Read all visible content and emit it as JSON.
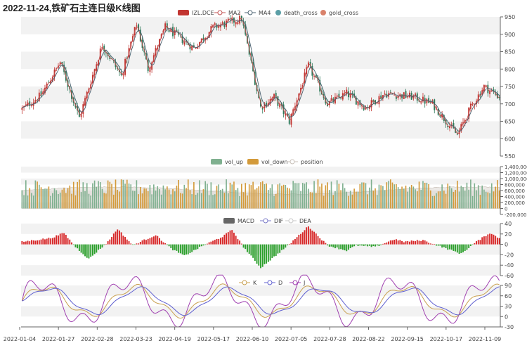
{
  "title": "2022-11-24,铁矿石主连日级K线图",
  "colors": {
    "up": "#c23531",
    "down": "#2f7a5b",
    "ma2": "#c05050",
    "ma4": "#4a6170",
    "death_cross": "#5b9ea6",
    "gold_cross": "#d9826b",
    "vol_up": "#7fb08f",
    "vol_down": "#d39a3a",
    "position": "#c8c0b8",
    "macd_up": "#d62728",
    "macd_down": "#2ca02c",
    "dif": "#7b7bc8",
    "dea": "#c8c8c8",
    "k": "#c8a050",
    "d": "#6060d0",
    "j": "#a040b0",
    "band": "#f2f2f2",
    "axis": "#666666"
  },
  "chart_data": [
    {
      "type": "candlestick",
      "name": "kline",
      "legend": [
        "IZL.DCE",
        "MA2",
        "MA4",
        "death_cross",
        "gold_cross"
      ],
      "ylim": [
        550,
        950
      ],
      "yticks": [
        "950",
        "900",
        "850",
        "800",
        "750",
        "700",
        "650",
        "600",
        "550"
      ],
      "anchors_x": [
        0,
        10,
        20,
        30,
        42,
        52,
        60,
        66,
        75,
        90,
        100,
        115,
        125,
        132,
        140,
        150,
        160,
        170,
        180,
        190,
        205,
        215,
        228,
        235,
        242,
        250
      ],
      "anchors_y": [
        685,
        725,
        820,
        660,
        870,
        780,
        930,
        800,
        920,
        860,
        920,
        945,
        690,
        720,
        650,
        810,
        700,
        730,
        690,
        730,
        720,
        700,
        610,
        690,
        750,
        720
      ]
    },
    {
      "type": "bar",
      "name": "volume",
      "legend": [
        "vol_up",
        "vol_down",
        "position"
      ],
      "ylim": [
        -200000,
        1400000
      ],
      "yticks": [
        "1,400,000",
        "1,200,000",
        "1,000,000",
        "800,000",
        "600,000",
        "400,000",
        "200,000",
        "0",
        "-200,000"
      ],
      "base_volume": 750000,
      "position_level": 600000
    },
    {
      "type": "bar",
      "name": "macd",
      "legend": [
        "MACD",
        "DIF",
        "DEA"
      ],
      "ylim": [
        -60,
        40
      ],
      "yticks": [
        "40",
        "20",
        "0",
        "-20",
        "-40",
        "-60"
      ],
      "anchors_x": [
        0,
        15,
        22,
        28,
        35,
        45,
        50,
        58,
        62,
        70,
        78,
        85,
        95,
        105,
        110,
        116,
        125,
        135,
        140,
        150,
        160,
        170,
        175,
        185,
        195,
        200,
        210,
        220,
        230,
        238,
        245,
        250
      ],
      "anchors_y": [
        5,
        12,
        22,
        -5,
        -28,
        5,
        30,
        -2,
        5,
        18,
        -8,
        -22,
        -2,
        15,
        28,
        -5,
        -45,
        -15,
        0,
        35,
        -2,
        -12,
        -2,
        -5,
        10,
        5,
        8,
        -5,
        -18,
        5,
        22,
        12
      ]
    },
    {
      "type": "line",
      "name": "kdj",
      "legend": [
        "K",
        "D",
        "J"
      ],
      "ylim": [
        -30,
        90
      ],
      "yticks": [
        "90",
        "60",
        "30",
        "0",
        "-30"
      ],
      "x_labels": [
        "2022-01-04",
        "2022-01-27",
        "2022-02-28",
        "2022-03-23",
        "2022-04-19",
        "2022-05-17",
        "2022-06-10",
        "2022-07-05",
        "2022-07-28",
        "2022-08-22",
        "2022-09-15",
        "2022-10-17",
        "2022-11-09"
      ]
    }
  ]
}
